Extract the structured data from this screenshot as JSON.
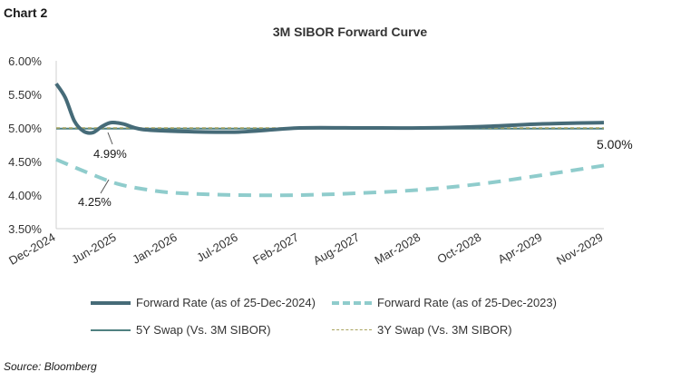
{
  "chart_label": "Chart 2",
  "source": "Source: Bloomberg",
  "colors": {
    "forward_2024": "#466b78",
    "forward_2023": "#8fcccc",
    "swap_5y": "#4f8181",
    "swap_3y": "#a9a35e",
    "axis": "#d0d0d0"
  },
  "chart_data": {
    "type": "line",
    "title": "3M SIBOR Forward Curve",
    "xlabel": "",
    "ylabel": "",
    "ylim": [
      3.5,
      6.0
    ],
    "yticks": [
      "3.50%",
      "4.00%",
      "4.50%",
      "5.00%",
      "5.50%",
      "6.00%"
    ],
    "ytick_values": [
      3.5,
      4.0,
      4.5,
      5.0,
      5.5,
      6.0
    ],
    "x_ticks": [
      "Dec-2024",
      "Jun-2025",
      "Jan-2026",
      "Jul-2026",
      "Feb-2027",
      "Aug-2027",
      "Mar-2028",
      "Oct-2028",
      "Apr-2029",
      "Nov-2029"
    ],
    "x_unit": "tick index (Dec-2024 = 0, Nov-2029 = 9)",
    "grid": false,
    "legend_position": "bottom",
    "series": [
      {
        "name": "Forward Rate (as of 25-Dec-2024)",
        "style": "solid-thick",
        "x": [
          0,
          0.15,
          0.3,
          0.45,
          0.6,
          0.75,
          0.9,
          1.1,
          1.4,
          2,
          3,
          4,
          5,
          6,
          7,
          8,
          9
        ],
        "y": [
          5.66,
          5.45,
          5.1,
          4.95,
          4.93,
          5.02,
          5.08,
          5.06,
          4.98,
          4.95,
          4.94,
          5.0,
          5.0,
          5.0,
          5.02,
          5.06,
          5.08
        ]
      },
      {
        "name": "Forward Rate (as of 25-Dec-2023)",
        "style": "dashed",
        "x": [
          0,
          0.5,
          1,
          1.5,
          2,
          3,
          4,
          5,
          6,
          7,
          8,
          9
        ],
        "y": [
          4.53,
          4.34,
          4.17,
          4.08,
          4.03,
          4.0,
          4.0,
          4.03,
          4.08,
          4.17,
          4.3,
          4.44
        ]
      },
      {
        "name": "5Y Swap (Vs. 3M SIBOR)",
        "style": "solid",
        "x": [
          0,
          9
        ],
        "y": [
          4.99,
          4.99
        ]
      },
      {
        "name": "3Y Swap (Vs. 3M SIBOR)",
        "style": "dotted",
        "x": [
          0,
          9
        ],
        "y": [
          5.0,
          5.0
        ]
      }
    ],
    "annotations": [
      "4.99%",
      "4.25%",
      "5.00%"
    ]
  }
}
